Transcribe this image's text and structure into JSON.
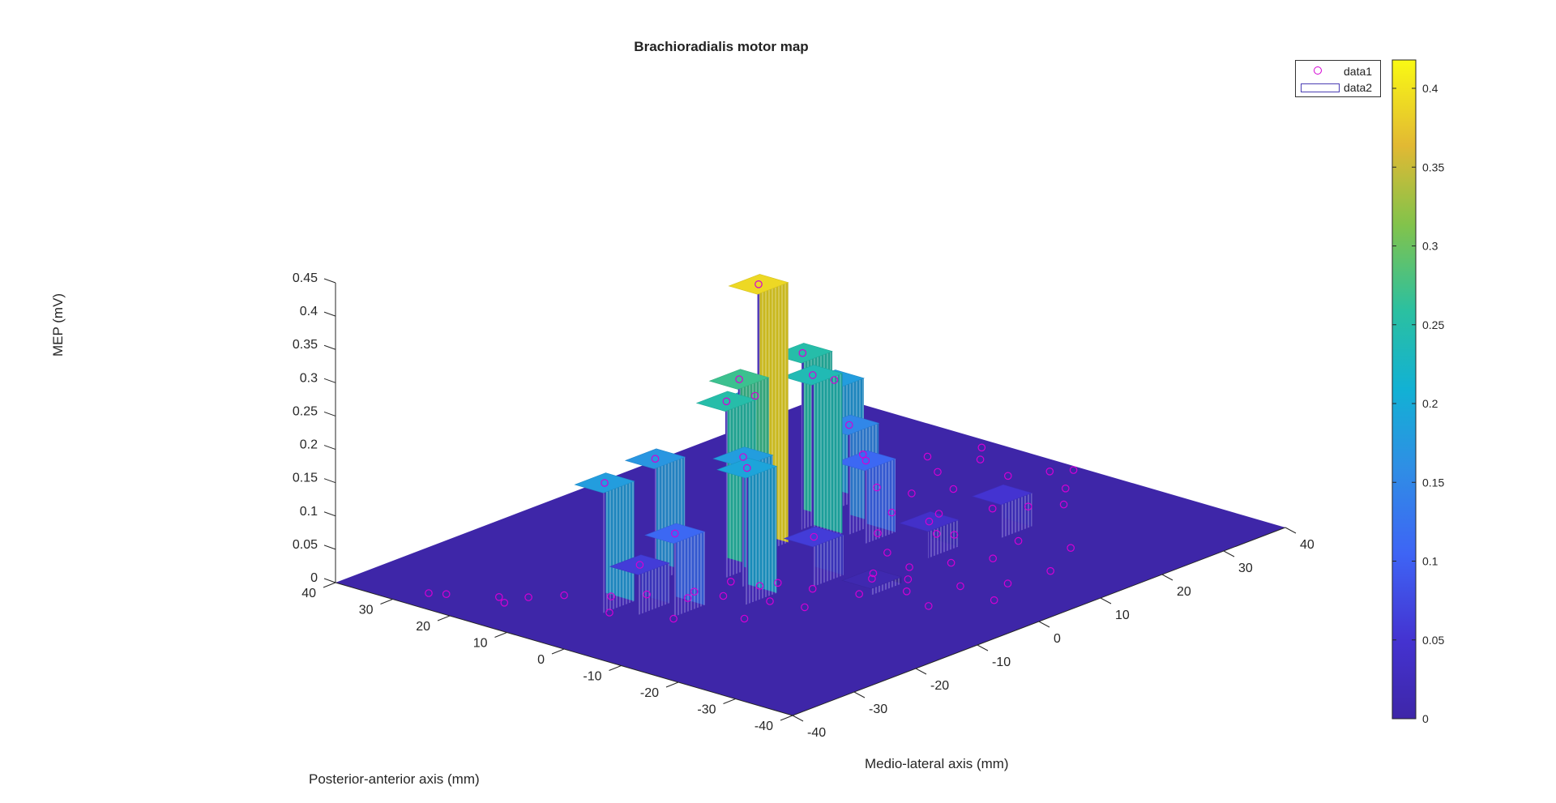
{
  "chart_data": {
    "type": "3d-bar-surface",
    "title": "Brachioradialis motor map",
    "xlabel": "Medio-lateral axis (mm)",
    "ylabel": "Posterior-anterior axis (mm)",
    "zlabel": "MEP (mV)",
    "x_ticks": [
      "-40",
      "-30",
      "-20",
      "-10",
      "0",
      "10",
      "20",
      "30",
      "40"
    ],
    "y_ticks": [
      "-40",
      "-30",
      "-20",
      "-10",
      "0",
      "10",
      "20",
      "30",
      "40"
    ],
    "z_ticks": [
      "0",
      "0.05",
      "0.1",
      "0.15",
      "0.2",
      "0.25",
      "0.3",
      "0.35",
      "0.4",
      "0.45"
    ],
    "xlim": [
      -40,
      40
    ],
    "ylim": [
      -40,
      40
    ],
    "zlim": [
      0,
      0.45
    ],
    "colorbar": {
      "ticks": [
        "0",
        "0.05",
        "0.1",
        "0.15",
        "0.2",
        "0.25",
        "0.3",
        "0.35",
        "0.4"
      ],
      "range": [
        0,
        0.418
      ],
      "colormap": "parula"
    },
    "legend": {
      "position": "top-right",
      "entries": [
        {
          "label": "data1",
          "marker": "circle",
          "color": "#d400d4"
        },
        {
          "label": "data2",
          "marker": "patch",
          "color": "#4a3db3"
        }
      ]
    },
    "series": [
      {
        "name": "data1",
        "type": "scatter3",
        "points": [
          {
            "x": -1,
            "y": 8,
            "z": 0.39
          },
          {
            "x": -9,
            "y": 5,
            "z": 0.25
          },
          {
            "x": -6,
            "y": 6,
            "z": 0.27
          },
          {
            "x": 8,
            "y": 10,
            "z": 0.25
          },
          {
            "x": 5,
            "y": 5,
            "z": 0.24
          },
          {
            "x": -26,
            "y": 8,
            "z": 0.18
          },
          {
            "x": -14,
            "y": -4,
            "z": 0.19
          },
          {
            "x": -10,
            "y": 1,
            "z": 0.18
          },
          {
            "x": 10,
            "y": 4,
            "z": 0.15
          },
          {
            "x": 15,
            "y": 12,
            "z": 0.18
          },
          {
            "x": -15,
            "y": 11,
            "z": 0.17
          },
          {
            "x": 4,
            "y": 14,
            "z": 0.19
          },
          {
            "x": -22,
            "y": 0,
            "z": 0.11
          },
          {
            "x": 9,
            "y": 0,
            "z": 0.11
          },
          {
            "x": -24,
            "y": 4,
            "z": 0.06
          },
          {
            "x": -5,
            "y": -6,
            "z": 0.06
          },
          {
            "x": -3,
            "y": -14,
            "z": 0.01
          },
          {
            "x": 10,
            "y": -10,
            "z": 0.04
          },
          {
            "x": -36,
            "y": 28,
            "z": 0
          },
          {
            "x": -35,
            "y": 26,
            "z": 0
          },
          {
            "x": -33,
            "y": 18,
            "z": 0
          },
          {
            "x": -32,
            "y": 20,
            "z": 0
          },
          {
            "x": -30,
            "y": 17,
            "z": 0
          },
          {
            "x": -27,
            "y": 14,
            "z": 0
          },
          {
            "x": -24,
            "y": 9,
            "z": 0
          },
          {
            "x": -21,
            "y": 6,
            "z": 0
          },
          {
            "x": -19,
            "y": 1,
            "z": 0
          },
          {
            "x": -17,
            "y": 2,
            "z": 0
          },
          {
            "x": -16,
            "y": -2,
            "z": 0
          },
          {
            "x": -14,
            "y": -8,
            "z": 0
          },
          {
            "x": -13,
            "y": -13,
            "z": 0
          },
          {
            "x": -12,
            "y": 1,
            "z": 0
          },
          {
            "x": -11,
            "y": -3,
            "z": 0
          },
          {
            "x": -9,
            "y": -4,
            "z": 0
          },
          {
            "x": -8,
            "y": -9,
            "z": 0
          },
          {
            "x": -6,
            "y": -15,
            "z": 0
          },
          {
            "x": -4,
            "y": -25,
            "z": 0
          },
          {
            "x": -2,
            "y": -19,
            "z": 0
          },
          {
            "x": 0,
            "y": -11,
            "z": 0
          },
          {
            "x": 1,
            "y": -16,
            "z": 0
          },
          {
            "x": 3,
            "y": -23,
            "z": 0
          },
          {
            "x": 4,
            "y": -13,
            "z": 0
          },
          {
            "x": 6,
            "y": -7,
            "z": 0
          },
          {
            "x": 8,
            "y": -16,
            "z": 0
          },
          {
            "x": 10,
            "y": -1,
            "z": 0
          },
          {
            "x": 12,
            "y": -19,
            "z": 0
          },
          {
            "x": 14,
            "y": -7,
            "z": 0
          },
          {
            "x": 15,
            "y": -9,
            "z": 0
          },
          {
            "x": 16,
            "y": 3,
            "z": 0
          },
          {
            "x": 18,
            "y": -17,
            "z": 0
          },
          {
            "x": 19,
            "y": -2,
            "z": 0
          },
          {
            "x": 21,
            "y": 11,
            "z": 0
          },
          {
            "x": 22,
            "y": 6,
            "z": 0
          },
          {
            "x": 24,
            "y": -6,
            "z": 0
          },
          {
            "x": 26,
            "y": 3,
            "z": 0
          },
          {
            "x": 28,
            "y": 21,
            "z": 0
          },
          {
            "x": 29,
            "y": 9,
            "z": 0
          },
          {
            "x": 30,
            "y": -12,
            "z": 0
          },
          {
            "x": 32,
            "y": 14,
            "z": 0
          },
          {
            "x": 33,
            "y": 1,
            "z": 0
          },
          {
            "x": 35,
            "y": 8,
            "z": 0
          },
          {
            "x": 37,
            "y": -2,
            "z": 0
          },
          {
            "x": 38,
            "y": 11,
            "z": 0
          },
          {
            "x": 39,
            "y": -4,
            "z": 0
          },
          {
            "x": 34,
            "y": -8,
            "z": 0
          },
          {
            "x": 27,
            "y": -9,
            "z": 0
          },
          {
            "x": 20,
            "y": -24,
            "z": 0
          },
          {
            "x": 13,
            "y": -28,
            "z": 0
          },
          {
            "x": 7,
            "y": -27,
            "z": 0
          },
          {
            "x": 2,
            "y": -30,
            "z": 0
          },
          {
            "x": -20,
            "y": -10,
            "z": 0
          },
          {
            "x": -25,
            "y": -3,
            "z": 0
          },
          {
            "x": -28,
            "y": 5,
            "z": 0
          }
        ]
      },
      {
        "name": "data2",
        "type": "surface",
        "bars": [
          {
            "x": -1,
            "y": 8,
            "z": 0.39
          },
          {
            "x": -9,
            "y": 5,
            "z": 0.25
          },
          {
            "x": -6,
            "y": 6,
            "z": 0.27
          },
          {
            "x": 8,
            "y": 10,
            "z": 0.25
          },
          {
            "x": 5,
            "y": 5,
            "z": 0.24
          },
          {
            "x": -26,
            "y": 8,
            "z": 0.18
          },
          {
            "x": -14,
            "y": -4,
            "z": 0.19
          },
          {
            "x": -10,
            "y": 1,
            "z": 0.18
          },
          {
            "x": 10,
            "y": 4,
            "z": 0.15
          },
          {
            "x": 15,
            "y": 12,
            "z": 0.18
          },
          {
            "x": -15,
            "y": 11,
            "z": 0.17
          },
          {
            "x": 4,
            "y": 14,
            "z": 0.19
          },
          {
            "x": -22,
            "y": 0,
            "z": 0.11
          },
          {
            "x": 9,
            "y": 0,
            "z": 0.11
          },
          {
            "x": -24,
            "y": 4,
            "z": 0.06
          },
          {
            "x": -5,
            "y": -6,
            "z": 0.06
          },
          {
            "x": -3,
            "y": -14,
            "z": 0.01
          },
          {
            "x": 10,
            "y": -10,
            "z": 0.04
          },
          {
            "x": 20,
            "y": -12,
            "z": 0.05
          }
        ]
      }
    ]
  }
}
